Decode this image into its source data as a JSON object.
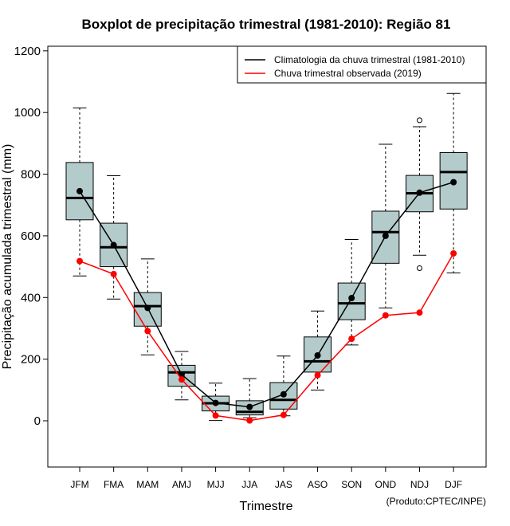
{
  "chart_data": {
    "type": "boxplot",
    "title": "Boxplot de precipitação trimestral (1981-2010): Região 81",
    "xlabel": "Trimestre",
    "ylabel": "Precipitação acumulada trimestral (mm)",
    "credit": "(Produto:CPTEC/INPE)",
    "ylim": [
      -150,
      1225
    ],
    "yticks": [
      0,
      200,
      400,
      600,
      800,
      1000,
      1200
    ],
    "categories": [
      "JFM",
      "FMA",
      "MAM",
      "AMJ",
      "MJJ",
      "JJA",
      "JAS",
      "ASO",
      "SON",
      "OND",
      "NDJ",
      "DJF"
    ],
    "boxes": [
      {
        "min": 470,
        "q1": 652,
        "median": 723,
        "q3": 838,
        "max": 1015,
        "outliers": []
      },
      {
        "min": 395,
        "q1": 500,
        "median": 563,
        "q3": 641,
        "max": 795,
        "outliers": []
      },
      {
        "min": 214,
        "q1": 307,
        "median": 372,
        "q3": 416,
        "max": 525,
        "outliers": []
      },
      {
        "min": 68,
        "q1": 112,
        "median": 157,
        "q3": 180,
        "max": 225,
        "outliers": []
      },
      {
        "min": 1,
        "q1": 32,
        "median": 57,
        "q3": 80,
        "max": 122,
        "outliers": []
      },
      {
        "min": 10,
        "q1": 19,
        "median": 29,
        "q3": 65,
        "max": 137,
        "outliers": []
      },
      {
        "min": 16,
        "q1": 38,
        "median": 68,
        "q3": 124,
        "max": 210,
        "outliers": []
      },
      {
        "min": 100,
        "q1": 158,
        "median": 193,
        "q3": 272,
        "max": 356,
        "outliers": []
      },
      {
        "min": 246,
        "q1": 328,
        "median": 381,
        "q3": 447,
        "max": 588,
        "outliers": []
      },
      {
        "min": 366,
        "q1": 511,
        "median": 612,
        "q3": 680,
        "max": 897,
        "outliers": []
      },
      {
        "min": 537,
        "q1": 678,
        "median": 738,
        "q3": 796,
        "max": 954,
        "outliers": [
          495,
          975
        ]
      },
      {
        "min": 480,
        "q1": 687,
        "median": 807,
        "q3": 870,
        "max": 1062,
        "outliers": []
      }
    ],
    "series": [
      {
        "name": "Climatologia da chuva trimestral (1981-2010)",
        "color": "#000000",
        "values": [
          745,
          570,
          366,
          150,
          58,
          45,
          86,
          212,
          398,
          600,
          740,
          774
        ]
      },
      {
        "name": "Chuva trimestral observada (2019)",
        "color": "#ff0000",
        "values": [
          518,
          476,
          291,
          134,
          17,
          1,
          19,
          148,
          266,
          342,
          351,
          543
        ]
      }
    ],
    "legend_position": "top-right",
    "box_fill": "#b4cbcb"
  }
}
